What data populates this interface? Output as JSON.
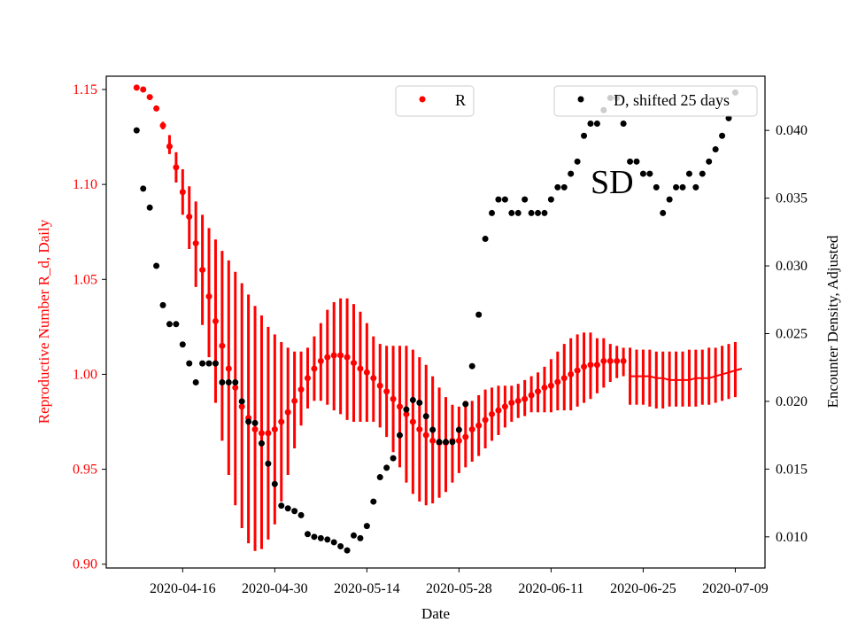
{
  "chart_data": {
    "type": "scatter",
    "xlabel": "Date",
    "ylabel_left": "Reproductive Number R_d, Daily",
    "ylabel_right": "Encounter Density, Adjusted",
    "annotation": "SD",
    "x_ticks": [
      "2020-04-16",
      "2020-04-30",
      "2020-05-14",
      "2020-05-28",
      "2020-06-11",
      "2020-06-25",
      "2020-07-09"
    ],
    "y_left_ticks": [
      "0.90",
      "0.95",
      "1.00",
      "1.05",
      "1.10",
      "1.15"
    ],
    "y_right_ticks": [
      "0.010",
      "0.015",
      "0.020",
      "0.025",
      "0.030",
      "0.035",
      "0.040"
    ],
    "y_left_range": [
      0.898,
      1.157
    ],
    "y_right_range": [
      0.0077,
      0.044
    ],
    "grid": false,
    "colors": {
      "R": "#ff0000",
      "D": "#000000",
      "left_axis": "#ff0000"
    },
    "legend": [
      {
        "label": "R",
        "placement": "top-center"
      },
      {
        "label": "D, shifted 25 days",
        "placement": "top-right"
      }
    ],
    "dates": [
      "2020-04-09",
      "2020-04-10",
      "2020-04-11",
      "2020-04-12",
      "2020-04-13",
      "2020-04-14",
      "2020-04-15",
      "2020-04-16",
      "2020-04-17",
      "2020-04-18",
      "2020-04-19",
      "2020-04-20",
      "2020-04-21",
      "2020-04-22",
      "2020-04-23",
      "2020-04-24",
      "2020-04-25",
      "2020-04-26",
      "2020-04-27",
      "2020-04-28",
      "2020-04-29",
      "2020-04-30",
      "2020-05-01",
      "2020-05-02",
      "2020-05-03",
      "2020-05-04",
      "2020-05-05",
      "2020-05-06",
      "2020-05-07",
      "2020-05-08",
      "2020-05-09",
      "2020-05-10",
      "2020-05-11",
      "2020-05-12",
      "2020-05-13",
      "2020-05-14",
      "2020-05-15",
      "2020-05-16",
      "2020-05-17",
      "2020-05-18",
      "2020-05-19",
      "2020-05-20",
      "2020-05-21",
      "2020-05-22",
      "2020-05-23",
      "2020-05-24",
      "2020-05-25",
      "2020-05-26",
      "2020-05-27",
      "2020-05-28",
      "2020-05-29",
      "2020-05-30",
      "2020-05-31",
      "2020-06-01",
      "2020-06-02",
      "2020-06-03",
      "2020-06-04",
      "2020-06-05",
      "2020-06-06",
      "2020-06-07",
      "2020-06-08",
      "2020-06-09",
      "2020-06-10",
      "2020-06-11",
      "2020-06-12",
      "2020-06-13",
      "2020-06-14",
      "2020-06-15",
      "2020-06-16",
      "2020-06-17",
      "2020-06-18",
      "2020-06-19",
      "2020-06-20",
      "2020-06-21",
      "2020-06-22",
      "2020-06-23",
      "2020-06-24",
      "2020-06-25",
      "2020-06-26",
      "2020-06-27",
      "2020-06-28",
      "2020-06-29",
      "2020-06-30",
      "2020-07-01",
      "2020-07-02",
      "2020-07-03",
      "2020-07-04",
      "2020-07-05",
      "2020-07-06",
      "2020-07-07",
      "2020-07-08",
      "2020-07-09"
    ],
    "series": [
      {
        "name": "R",
        "axis": "left",
        "marker_until": "2020-06-22",
        "values": [
          1.151,
          1.15,
          1.146,
          1.14,
          1.131,
          1.12,
          1.109,
          1.096,
          1.083,
          1.069,
          1.055,
          1.041,
          1.028,
          1.015,
          1.003,
          0.993,
          0.983,
          0.977,
          0.971,
          0.969,
          0.969,
          0.971,
          0.975,
          0.98,
          0.986,
          0.992,
          0.998,
          1.003,
          1.007,
          1.009,
          1.01,
          1.01,
          1.009,
          1.006,
          1.003,
          1.001,
          0.998,
          0.994,
          0.991,
          0.987,
          0.983,
          0.979,
          0.975,
          0.971,
          0.968,
          0.965,
          0.964,
          0.964,
          0.965,
          0.965,
          0.967,
          0.971,
          0.973,
          0.976,
          0.979,
          0.981,
          0.983,
          0.985,
          0.986,
          0.987,
          0.989,
          0.991,
          0.993,
          0.994,
          0.996,
          0.998,
          1.0,
          1.002,
          1.004,
          1.005,
          1.005,
          1.007,
          1.007,
          1.007,
          1.007
        ],
        "line_values_from_2020-06-22": [
          0.999,
          0.999,
          0.999,
          0.999,
          0.998,
          0.998,
          0.997,
          0.997,
          0.997,
          0.997,
          0.998,
          0.998,
          0.998,
          0.999,
          1.0,
          1.001,
          1.002,
          1.003
        ],
        "error_lower": [
          1.15,
          1.149,
          1.145,
          1.139,
          1.129,
          1.116,
          1.101,
          1.084,
          1.066,
          1.046,
          1.026,
          1.009,
          0.985,
          0.965,
          0.947,
          0.931,
          0.919,
          0.911,
          0.907,
          0.908,
          0.913,
          0.921,
          0.933,
          0.947,
          0.961,
          0.973,
          0.982,
          0.986,
          0.986,
          0.984,
          0.981,
          0.979,
          0.976,
          0.975,
          0.975,
          0.975,
          0.975,
          0.972,
          0.967,
          0.959,
          0.951,
          0.943,
          0.937,
          0.933,
          0.931,
          0.932,
          0.935,
          0.938,
          0.943,
          0.948,
          0.951,
          0.954,
          0.957,
          0.961,
          0.965,
          0.968,
          0.972,
          0.975,
          0.977,
          0.978,
          0.98,
          0.98,
          0.98,
          0.98,
          0.981,
          0.981,
          0.981,
          0.983,
          0.985,
          0.987,
          0.99,
          0.993,
          0.996,
          0.998,
          0.999,
          0.984,
          0.984,
          0.984,
          0.983,
          0.982,
          0.982,
          0.983,
          0.983,
          0.983,
          0.983,
          0.983,
          0.984,
          0.984,
          0.985,
          0.986,
          0.987,
          0.988
        ],
        "error_upper": [
          1.152,
          1.151,
          1.147,
          1.141,
          1.133,
          1.126,
          1.117,
          1.108,
          1.099,
          1.091,
          1.084,
          1.077,
          1.071,
          1.065,
          1.06,
          1.054,
          1.048,
          1.042,
          1.036,
          1.031,
          1.025,
          1.021,
          1.017,
          1.014,
          1.012,
          1.012,
          1.014,
          1.02,
          1.027,
          1.034,
          1.038,
          1.04,
          1.04,
          1.037,
          1.033,
          1.027,
          1.02,
          1.016,
          1.015,
          1.015,
          1.015,
          1.015,
          1.013,
          1.009,
          1.005,
          0.999,
          0.993,
          0.988,
          0.984,
          0.983,
          0.986,
          0.986,
          0.989,
          0.992,
          0.993,
          0.994,
          0.994,
          0.994,
          0.995,
          0.997,
          0.999,
          1.001,
          1.004,
          1.008,
          1.012,
          1.016,
          1.019,
          1.021,
          1.022,
          1.022,
          1.019,
          1.019,
          1.016,
          1.015,
          1.014,
          1.014,
          1.013,
          1.013,
          1.013,
          1.012,
          1.012,
          1.012,
          1.012,
          1.012,
          1.013,
          1.013,
          1.013,
          1.014,
          1.014,
          1.015,
          1.016,
          1.017
        ]
      },
      {
        "name": "D, shifted 25 days",
        "axis": "right",
        "values": [
          0.04,
          0.0357,
          0.0343,
          0.03,
          0.0271,
          0.0257,
          0.0257,
          0.0242,
          0.0228,
          0.0214,
          0.0228,
          0.0228,
          0.0228,
          0.0214,
          0.0214,
          0.0214,
          0.02,
          0.0185,
          0.0184,
          0.0169,
          0.0154,
          0.0139,
          0.0123,
          0.0121,
          0.0119,
          0.0116,
          0.0102,
          0.01,
          0.0099,
          0.0098,
          0.0096,
          0.0093,
          0.009,
          0.0101,
          0.0099,
          0.0108,
          0.0126,
          0.0144,
          0.0151,
          0.0158,
          0.0175,
          0.0194,
          0.0201,
          0.0199,
          0.0189,
          0.0179,
          0.017,
          0.017,
          0.017,
          0.0179,
          0.0198,
          0.0226,
          0.0264,
          0.032,
          0.0339,
          0.0349,
          0.0349,
          0.0339,
          0.0339,
          0.0349,
          0.0339,
          0.0339,
          0.0339,
          0.0349,
          0.0358,
          0.0358,
          0.0368,
          0.0377,
          0.0396,
          0.0405,
          0.0405,
          0.0415,
          0.0424,
          0.0424,
          0.0405,
          0.0377,
          0.0377,
          0.0368,
          0.0368,
          0.0358,
          0.0339,
          0.0349,
          0.0358,
          0.0358,
          0.0368,
          0.0358,
          0.0368,
          0.0377,
          0.0386,
          0.0396,
          0.0409,
          0.0428
        ]
      }
    ]
  }
}
